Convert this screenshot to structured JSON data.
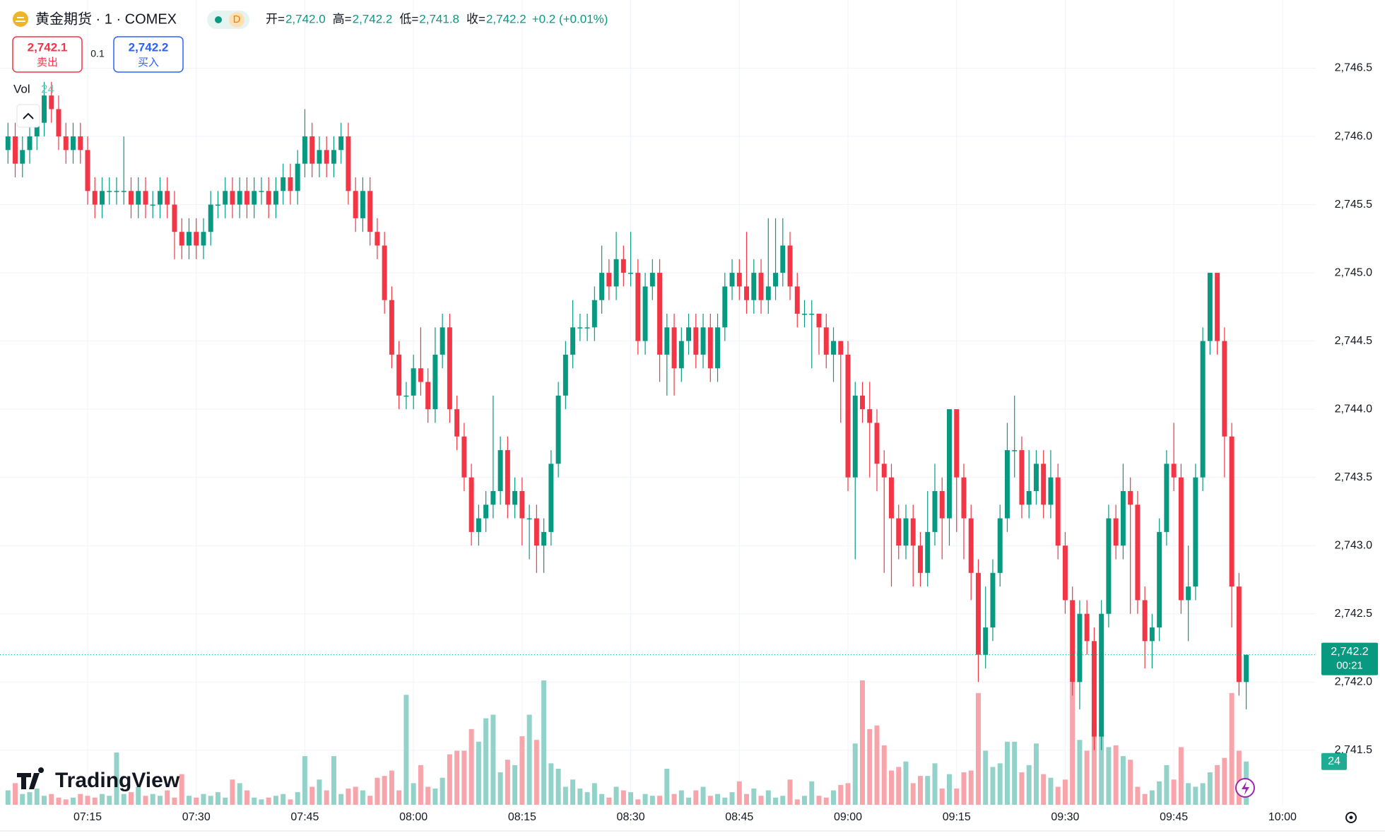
{
  "chart_data": {
    "type": "candlestick",
    "title": "黄金期货 · 1 · COMEX",
    "interval_badge": "D",
    "ohlc_legend": [
      {
        "label": "开=",
        "value": "2,742.0"
      },
      {
        "label": "高=",
        "value": "2,742.2"
      },
      {
        "label": "低=",
        "value": "2,741.8"
      },
      {
        "label": "收=",
        "value": "2,742.2"
      }
    ],
    "change": "+0.2 (+0.01%)",
    "sell": {
      "price": "2,742.1",
      "label": "卖出"
    },
    "spread": "0.1",
    "buy": {
      "price": "2,742.2",
      "label": "买入"
    },
    "volume_legend": {
      "label": "Vol",
      "value": "24"
    },
    "watermark": "TradingView",
    "up_color": "#089981",
    "down_color": "#f23645",
    "volume_up_color": "#92d2c8",
    "volume_down_color": "#f7a4ab",
    "grid": true,
    "open": [
      2745.9,
      2746.0,
      2745.8,
      2745.9,
      2746.0,
      2746.1,
      2746.3,
      2746.2,
      2746.0,
      2745.9,
      2746.0,
      2745.9,
      2745.6,
      2745.5,
      2745.6,
      2745.6,
      2745.6,
      2745.6,
      2745.5,
      2745.6,
      2745.5,
      2745.5,
      2745.6,
      2745.5,
      2745.3,
      2745.2,
      2745.3,
      2745.2,
      2745.3,
      2745.5,
      2745.5,
      2745.6,
      2745.5,
      2745.6,
      2745.5,
      2745.6,
      2745.6,
      2745.5,
      2745.6,
      2745.7,
      2745.6,
      2745.8,
      2746.0,
      2745.8,
      2745.9,
      2745.8,
      2745.9,
      2746.0,
      2745.6,
      2745.4,
      2745.6,
      2745.3,
      2745.2,
      2744.8,
      2744.4,
      2744.1,
      2744.1,
      2744.3,
      2744.2,
      2744.0,
      2744.4,
      2744.6,
      2744.0,
      2743.8,
      2743.5,
      2743.1,
      2743.2,
      2743.3,
      2743.4,
      2743.7,
      2743.3,
      2743.4,
      2743.2,
      2743.2,
      2743.0,
      2743.1,
      2743.6,
      2744.1,
      2744.4,
      2744.6,
      2744.6,
      2744.6,
      2744.8,
      2745.0,
      2744.9,
      2745.1,
      2745.0,
      2745.0,
      2744.5,
      2744.9,
      2745.0,
      2744.4,
      2744.6,
      2744.3,
      2744.5,
      2744.6,
      2744.4,
      2744.6,
      2744.3,
      2744.6,
      2744.9,
      2745.0,
      2744.9,
      2744.8,
      2745.0,
      2744.8,
      2744.9,
      2745.0,
      2745.2,
      2744.9,
      2744.7,
      2744.7,
      2744.7,
      2744.6,
      2744.4,
      2744.5,
      2744.4,
      2743.5,
      2744.1,
      2744.0,
      2743.9,
      2743.6,
      2743.5,
      2743.2,
      2743.0,
      2743.2,
      2743.0,
      2742.8,
      2743.1,
      2743.4,
      2743.2,
      2744.0,
      2743.5,
      2743.2,
      2742.8,
      2742.2,
      2742.4,
      2742.8,
      2743.2,
      2743.7,
      2743.7,
      2743.3,
      2743.4,
      2743.6,
      2743.3,
      2743.5,
      2743.0,
      2742.6,
      2742.0,
      2742.5,
      2742.3,
      2741.6,
      2742.5,
      2743.2,
      2743.0,
      2743.4,
      2743.3,
      2742.6,
      2742.3,
      2742.4,
      2743.1,
      2743.6,
      2743.5,
      2742.6,
      2742.7,
      2743.5,
      2744.5,
      2745.0,
      2744.5,
      2743.8,
      2742.7,
      2742.0
    ],
    "high": [
      2746.1,
      2746.1,
      2746.0,
      2746.1,
      2746.2,
      2746.4,
      2746.4,
      2746.3,
      2746.1,
      2746.1,
      2746.1,
      2746.0,
      2745.7,
      2745.7,
      2745.7,
      2745.7,
      2746.0,
      2745.7,
      2745.7,
      2745.7,
      2745.6,
      2745.7,
      2745.7,
      2745.6,
      2745.4,
      2745.4,
      2745.4,
      2745.4,
      2745.6,
      2745.6,
      2745.7,
      2745.7,
      2745.7,
      2745.7,
      2745.7,
      2745.7,
      2745.7,
      2745.7,
      2745.8,
      2745.8,
      2745.9,
      2746.2,
      2746.1,
      2746.0,
      2746.0,
      2746.0,
      2746.1,
      2746.1,
      2745.7,
      2745.7,
      2745.7,
      2745.4,
      2745.3,
      2744.9,
      2744.5,
      2744.2,
      2744.4,
      2744.6,
      2744.3,
      2744.6,
      2744.7,
      2744.7,
      2744.1,
      2743.9,
      2743.6,
      2743.3,
      2743.4,
      2744.1,
      2743.8,
      2743.8,
      2743.5,
      2743.5,
      2743.3,
      2743.3,
      2743.2,
      2743.7,
      2744.2,
      2744.5,
      2744.8,
      2744.7,
      2744.7,
      2744.9,
      2745.2,
      2745.1,
      2745.3,
      2745.2,
      2745.3,
      2745.1,
      2745.0,
      2745.1,
      2745.1,
      2744.7,
      2744.7,
      2744.6,
      2744.7,
      2744.7,
      2744.7,
      2744.7,
      2744.7,
      2745.0,
      2745.1,
      2745.1,
      2745.3,
      2745.1,
      2745.1,
      2745.4,
      2745.4,
      2745.4,
      2745.3,
      2745.0,
      2744.8,
      2744.8,
      2744.7,
      2744.7,
      2744.6,
      2744.5,
      2744.5,
      2744.2,
      2744.2,
      2744.2,
      2744.0,
      2743.7,
      2743.6,
      2743.3,
      2743.3,
      2743.3,
      2743.1,
      2743.4,
      2743.6,
      2743.5,
      2744.0,
      2744.0,
      2743.6,
      2743.3,
      2742.9,
      2742.7,
      2742.9,
      2743.3,
      2743.9,
      2744.1,
      2743.8,
      2743.7,
      2743.7,
      2743.7,
      2743.7,
      2743.6,
      2743.1,
      2742.7,
      2742.6,
      2742.6,
      2742.4,
      2742.6,
      2743.3,
      2743.3,
      2743.6,
      2743.5,
      2743.4,
      2742.7,
      2742.5,
      2743.2,
      2743.7,
      2743.9,
      2743.6,
      2743.0,
      2743.6,
      2744.6,
      2745.0,
      2745.0,
      2744.6,
      2743.9,
      2742.8,
      2742.2
    ],
    "low": [
      2745.8,
      2745.7,
      2745.7,
      2745.8,
      2745.9,
      2746.0,
      2746.1,
      2745.9,
      2745.8,
      2745.8,
      2745.8,
      2745.5,
      2745.4,
      2745.4,
      2745.5,
      2745.5,
      2745.5,
      2745.4,
      2745.4,
      2745.4,
      2745.4,
      2745.4,
      2745.4,
      2745.1,
      2745.1,
      2745.1,
      2745.1,
      2745.1,
      2745.2,
      2745.4,
      2745.4,
      2745.4,
      2745.4,
      2745.4,
      2745.4,
      2745.5,
      2745.4,
      2745.4,
      2745.5,
      2745.5,
      2745.5,
      2745.7,
      2745.7,
      2745.7,
      2745.7,
      2745.7,
      2745.8,
      2745.5,
      2745.3,
      2745.3,
      2745.2,
      2745.1,
      2744.7,
      2744.3,
      2744.0,
      2744.0,
      2744.0,
      2744.1,
      2743.9,
      2743.9,
      2744.3,
      2743.9,
      2743.7,
      2743.4,
      2743.0,
      2743.0,
      2743.1,
      2743.2,
      2743.3,
      2743.2,
      2743.2,
      2743.0,
      2742.9,
      2742.8,
      2742.8,
      2743.0,
      2743.5,
      2744.0,
      2744.3,
      2744.5,
      2744.5,
      2744.5,
      2744.7,
      2744.8,
      2744.8,
      2744.9,
      2744.9,
      2744.4,
      2744.4,
      2744.8,
      2744.2,
      2744.1,
      2744.1,
      2744.2,
      2744.4,
      2744.3,
      2744.3,
      2744.2,
      2744.2,
      2744.5,
      2744.8,
      2744.8,
      2744.7,
      2744.7,
      2744.7,
      2744.7,
      2744.8,
      2744.9,
      2744.8,
      2744.6,
      2744.6,
      2744.3,
      2744.4,
      2744.3,
      2744.2,
      2743.9,
      2743.4,
      2742.9,
      2743.9,
      2743.5,
      2743.4,
      2742.8,
      2742.7,
      2742.9,
      2742.9,
      2742.7,
      2742.7,
      2742.7,
      2743.0,
      2742.9,
      2743.0,
      2743.1,
      2742.9,
      2742.6,
      2742.0,
      2742.1,
      2742.3,
      2742.7,
      2743.1,
      2743.5,
      2743.2,
      2743.2,
      2743.3,
      2743.2,
      2743.2,
      2742.9,
      2742.5,
      2741.9,
      2741.8,
      2742.2,
      2741.5,
      2741.5,
      2742.4,
      2742.9,
      2742.9,
      2742.5,
      2742.5,
      2742.1,
      2742.1,
      2742.3,
      2743.0,
      2743.4,
      2742.5,
      2742.3,
      2742.6,
      2743.4,
      2744.4,
      2744.4,
      2743.5,
      2742.4,
      2741.9,
      2741.8
    ],
    "close": [
      2746.0,
      2745.8,
      2745.9,
      2746.0,
      2746.1,
      2746.3,
      2746.2,
      2746.0,
      2745.9,
      2746.0,
      2745.9,
      2745.6,
      2745.5,
      2745.6,
      2745.6,
      2745.6,
      2745.6,
      2745.5,
      2745.6,
      2745.5,
      2745.5,
      2745.6,
      2745.5,
      2745.3,
      2745.2,
      2745.3,
      2745.2,
      2745.3,
      2745.5,
      2745.5,
      2745.6,
      2745.5,
      2745.6,
      2745.5,
      2745.6,
      2745.6,
      2745.5,
      2745.6,
      2745.7,
      2745.6,
      2745.8,
      2746.0,
      2745.8,
      2745.9,
      2745.8,
      2745.9,
      2746.0,
      2745.6,
      2745.4,
      2745.6,
      2745.3,
      2745.2,
      2744.8,
      2744.4,
      2744.1,
      2744.1,
      2744.3,
      2744.2,
      2744.0,
      2744.4,
      2744.6,
      2744.0,
      2743.8,
      2743.5,
      2743.1,
      2743.2,
      2743.3,
      2743.4,
      2743.7,
      2743.3,
      2743.4,
      2743.2,
      2743.2,
      2743.0,
      2743.1,
      2743.6,
      2744.1,
      2744.4,
      2744.6,
      2744.6,
      2744.6,
      2744.8,
      2745.0,
      2744.9,
      2745.1,
      2745.0,
      2745.0,
      2744.5,
      2744.9,
      2745.0,
      2744.4,
      2744.6,
      2744.3,
      2744.5,
      2744.6,
      2744.4,
      2744.6,
      2744.3,
      2744.6,
      2744.9,
      2745.0,
      2744.9,
      2744.8,
      2745.0,
      2744.8,
      2744.9,
      2745.0,
      2745.2,
      2744.9,
      2744.7,
      2744.7,
      2744.7,
      2744.6,
      2744.4,
      2744.5,
      2744.4,
      2743.5,
      2744.1,
      2744.0,
      2743.9,
      2743.6,
      2743.5,
      2743.2,
      2743.0,
      2743.2,
      2743.0,
      2742.8,
      2743.1,
      2743.4,
      2743.2,
      2744.0,
      2743.5,
      2743.2,
      2742.8,
      2742.2,
      2742.4,
      2742.8,
      2743.2,
      2743.7,
      2743.7,
      2743.3,
      2743.4,
      2743.6,
      2743.3,
      2743.5,
      2743.0,
      2742.6,
      2742.0,
      2742.5,
      2742.3,
      2741.6,
      2742.5,
      2743.2,
      2743.0,
      2743.4,
      2743.3,
      2742.6,
      2742.3,
      2742.4,
      2743.1,
      2743.6,
      2743.5,
      2742.6,
      2742.7,
      2743.5,
      2744.5,
      2745.0,
      2744.5,
      2743.8,
      2742.7,
      2742.0,
      2742.2
    ],
    "volume": [
      8,
      12,
      6,
      7,
      9,
      5,
      6,
      4,
      3,
      4,
      6,
      5,
      4,
      6,
      5,
      29,
      6,
      7,
      10,
      5,
      6,
      5,
      8,
      4,
      17,
      5,
      4,
      6,
      5,
      7,
      4,
      14,
      12,
      8,
      4,
      3,
      4,
      5,
      6,
      3,
      7,
      27,
      10,
      14,
      8,
      27,
      6,
      9,
      10,
      8,
      5,
      15,
      16,
      19,
      8,
      61,
      12,
      22,
      10,
      9,
      15,
      28,
      30,
      30,
      42,
      35,
      48,
      50,
      18,
      25,
      22,
      38,
      50,
      36,
      69,
      23,
      20,
      10,
      14,
      9,
      7,
      12,
      6,
      4,
      10,
      8,
      7,
      3,
      6,
      5,
      5,
      20,
      6,
      8,
      4,
      8,
      10,
      5,
      6,
      4,
      7,
      13,
      6,
      9,
      5,
      8,
      4,
      5,
      14,
      3,
      5,
      13,
      5,
      4,
      8,
      11,
      12,
      34,
      69,
      42,
      44,
      33,
      19,
      21,
      24,
      12,
      16,
      16,
      23,
      9,
      17,
      9,
      18,
      19,
      62,
      30,
      21,
      23,
      35,
      35,
      18,
      22,
      34,
      17,
      15,
      10,
      14,
      68,
      36,
      30,
      45,
      39,
      32,
      33,
      27,
      25,
      10,
      6,
      8,
      13,
      22,
      14,
      32,
      12,
      10,
      12,
      18,
      22,
      26,
      62,
      30,
      24
    ],
    "ylim": [
      2741.1,
      2747.0
    ],
    "yticks": [
      {
        "value": 2741.5,
        "label": "2,741.5"
      },
      {
        "value": 2742.0,
        "label": "2,742.0"
      },
      {
        "value": 2742.5,
        "label": "2,742.5"
      },
      {
        "value": 2743.0,
        "label": "2,743.0"
      },
      {
        "value": 2743.5,
        "label": "2,743.5"
      },
      {
        "value": 2744.0,
        "label": "2,744.0"
      },
      {
        "value": 2744.5,
        "label": "2,744.5"
      },
      {
        "value": 2745.0,
        "label": "2,745.0"
      },
      {
        "value": 2745.5,
        "label": "2,745.5"
      },
      {
        "value": 2746.0,
        "label": "2,746.0"
      },
      {
        "value": 2746.5,
        "label": "2,746.5"
      }
    ],
    "xlim": [
      -1.1,
      180.6
    ],
    "xticks": [
      {
        "value": 11,
        "label": "07:15"
      },
      {
        "value": 26,
        "label": "07:30"
      },
      {
        "value": 41,
        "label": "07:45"
      },
      {
        "value": 56,
        "label": "08:00"
      },
      {
        "value": 71,
        "label": "08:15"
      },
      {
        "value": 86,
        "label": "08:30"
      },
      {
        "value": 101,
        "label": "08:45"
      },
      {
        "value": 116,
        "label": "09:00"
      },
      {
        "value": 131,
        "label": "09:15"
      },
      {
        "value": 146,
        "label": "09:30"
      },
      {
        "value": 161,
        "label": "09:45"
      },
      {
        "value": 176,
        "label": "10:00"
      }
    ],
    "last_price": {
      "value": 2742.2,
      "label": "2,742.2",
      "countdown": "00:21"
    }
  }
}
